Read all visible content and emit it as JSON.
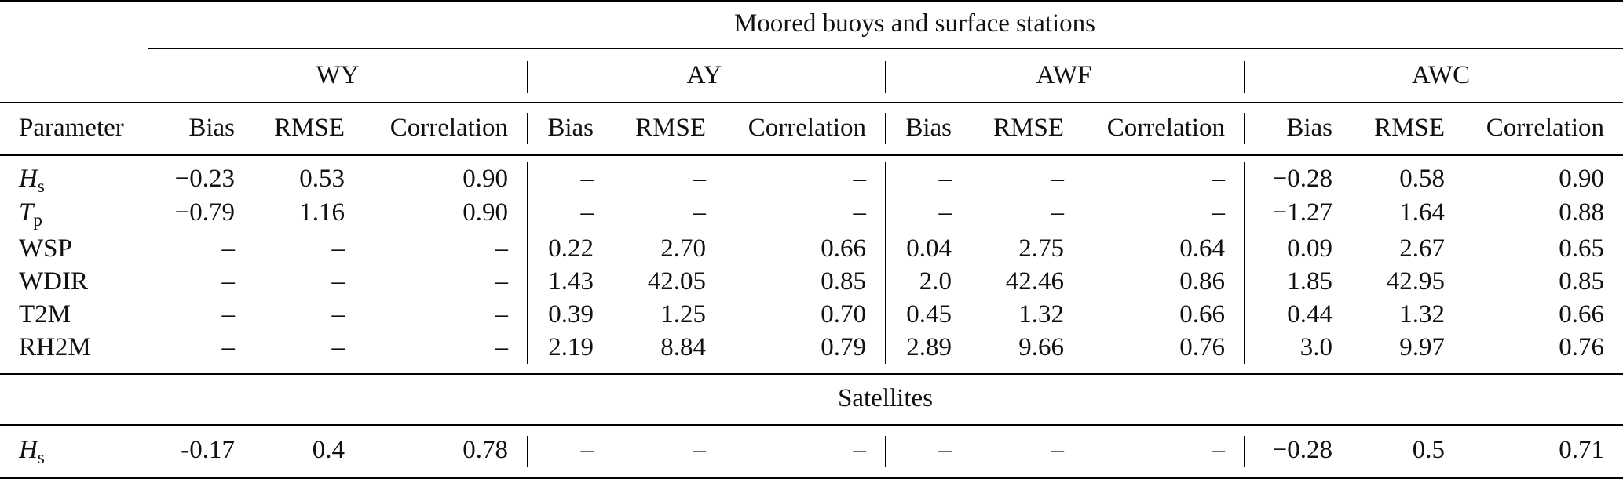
{
  "table": {
    "group1_title": "Moored buoys and surface stations",
    "group2_title": "Satellites",
    "dash": "–",
    "datasets": [
      "WY",
      "AY",
      "AWF",
      "AWC"
    ],
    "column_headers": [
      "Parameter",
      "Bias",
      "RMSE",
      "Correlation",
      "Bias",
      "RMSE",
      "Correlation",
      "Bias",
      "RMSE",
      "Correlation",
      "Bias",
      "RMSE",
      "Correlation"
    ],
    "rows": [
      {
        "param": {
          "base": "H",
          "sub": "s",
          "italic": true
        },
        "values": [
          "−0.23",
          "0.53",
          "0.90",
          "–",
          "–",
          "–",
          "–",
          "–",
          "–",
          "−0.28",
          "0.58",
          "0.90"
        ]
      },
      {
        "param": {
          "base": "T",
          "sub": "p",
          "italic": true
        },
        "values": [
          "−0.79",
          "1.16",
          "0.90",
          "–",
          "–",
          "–",
          "–",
          "–",
          "–",
          "−1.27",
          "1.64",
          "0.88"
        ]
      },
      {
        "param": {
          "base": "WSP",
          "sub": "",
          "italic": false
        },
        "values": [
          "–",
          "–",
          "–",
          "0.22",
          "2.70",
          "0.66",
          "0.04",
          "2.75",
          "0.64",
          "0.09",
          "2.67",
          "0.65"
        ]
      },
      {
        "param": {
          "base": "WDIR",
          "sub": "",
          "italic": false
        },
        "values": [
          "–",
          "–",
          "–",
          "1.43",
          "42.05",
          "0.85",
          "2.0",
          "42.46",
          "0.86",
          "1.85",
          "42.95",
          "0.85"
        ]
      },
      {
        "param": {
          "base": "T2M",
          "sub": "",
          "italic": false
        },
        "values": [
          "–",
          "–",
          "–",
          "0.39",
          "1.25",
          "0.70",
          "0.45",
          "1.32",
          "0.66",
          "0.44",
          "1.32",
          "0.66"
        ]
      },
      {
        "param": {
          "base": "RH2M",
          "sub": "",
          "italic": false
        },
        "values": [
          "–",
          "–",
          "–",
          "2.19",
          "8.84",
          "0.79",
          "2.89",
          "9.66",
          "0.76",
          "3.0",
          "9.97",
          "0.76"
        ]
      }
    ],
    "satellite_rows": [
      {
        "param": {
          "base": "H",
          "sub": "s",
          "italic": true
        },
        "values": [
          "-0.17",
          "0.4",
          "0.78",
          "–",
          "–",
          "–",
          "–",
          "–",
          "–",
          "−0.28",
          "0.5",
          "0.71"
        ]
      }
    ]
  }
}
